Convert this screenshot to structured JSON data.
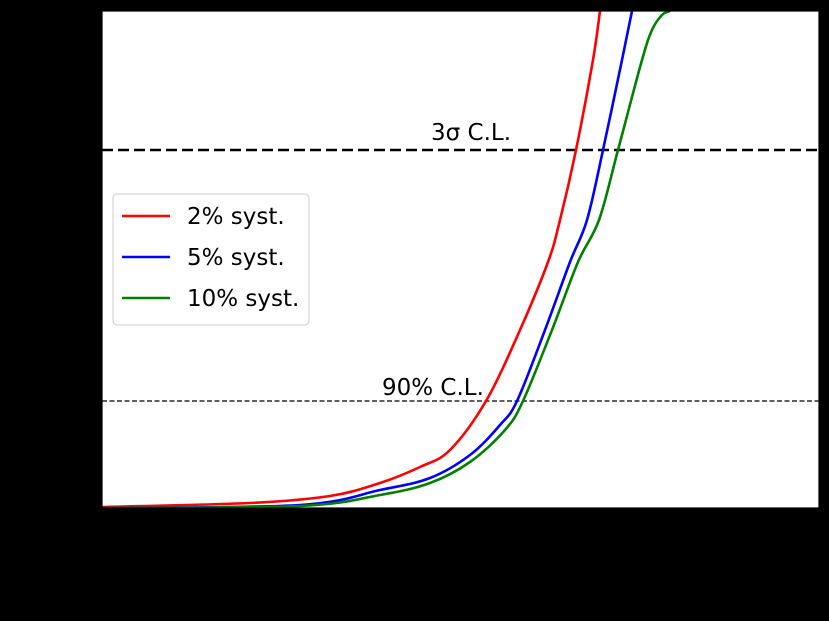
{
  "chart_data": {
    "type": "line",
    "title": "",
    "xlabel": "",
    "ylabel": "",
    "xlim": [
      0,
      1
    ],
    "ylim": [
      0,
      1
    ],
    "grid": false,
    "legend_position": "center left",
    "note": "Axis tick labels and axis labels are rendered black on a black background and are not visible; values below are normalized plot coordinates (x: 0=left edge, 1=right edge; y: 0=bottom, 1=top).",
    "series": [
      {
        "name": "2% syst.",
        "color": "#ff0000",
        "x": [
          0.0,
          0.207,
          0.318,
          0.389,
          0.431,
          0.467,
          0.48,
          0.535,
          0.588,
          0.639,
          0.664,
          0.685,
          0.699
        ],
        "y": [
          0.002,
          0.01,
          0.026,
          0.06,
          0.1,
          0.157,
          0.216,
          0.376,
          0.577,
          0.72,
          0.805,
          0.902,
          1.0
        ]
      },
      {
        "name": "5% syst.",
        "color": "#0000ff",
        "x": [
          0.0,
          0.277,
          0.389,
          0.453,
          0.51,
          0.578,
          0.6,
          0.647,
          0.677,
          0.7,
          0.726,
          0.74,
          0.76,
          0.74
        ],
        "y": [
          0.0,
          0.006,
          0.024,
          0.05,
          0.1,
          0.176,
          0.216,
          0.366,
          0.543,
          0.63,
          0.72,
          0.82,
          0.902,
          1.0
        ]
      },
      {
        "name": "10% syst.",
        "color": "#008000",
        "x": [
          0.0,
          0.277,
          0.389,
          0.453,
          0.516,
          0.586,
          0.609,
          0.656,
          0.693,
          0.72,
          0.747,
          0.768,
          0.794,
          0.79,
          0.812,
          0.829
        ],
        "y": [
          0.0,
          0.004,
          0.02,
          0.04,
          0.087,
          0.16,
          0.216,
          0.35,
          0.52,
          0.58,
          0.72,
          0.82,
          0.92,
          0.902,
          0.97,
          1.0
        ]
      }
    ],
    "hlines": [
      {
        "label": "3σ C.L.",
        "y": 0.72,
        "style": "dashed-thick",
        "color": "#000000"
      },
      {
        "label": "90% C.L.",
        "y": 0.216,
        "style": "dashed-thin",
        "color": "#000000"
      }
    ]
  },
  "annotations": {
    "sigma_label": "3σ C.L.",
    "ninety_label": "90% C.L."
  },
  "legend": {
    "items": [
      {
        "label": "2% syst.",
        "color": "#ff0000"
      },
      {
        "label": "5% syst.",
        "color": "#0000ff"
      },
      {
        "label": "10% syst.",
        "color": "#008000"
      }
    ]
  }
}
